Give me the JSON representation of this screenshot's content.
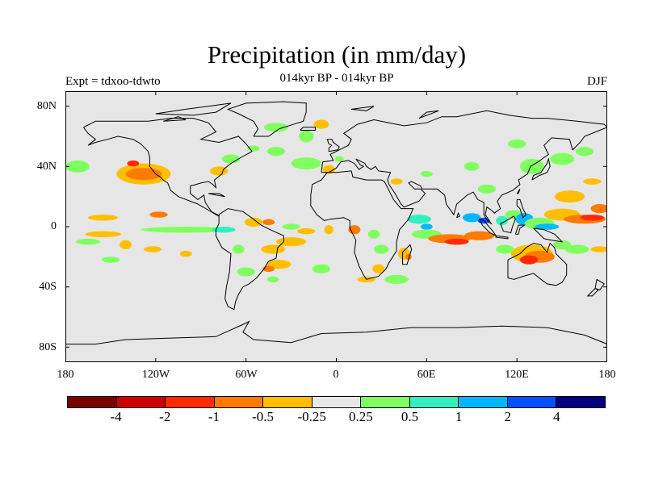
{
  "title": "Precipitation (in mm/day)",
  "subtitle": "014kyr BP - 014kyr BP",
  "left_label": "Expt = tdxoo-tdwto",
  "season": "DJF",
  "lat_ticks": [
    "80N",
    "40N",
    "0",
    "40S",
    "80S"
  ],
  "lon_ticks": [
    "180",
    "120W",
    "60W",
    "0",
    "60E",
    "120E",
    "180"
  ],
  "colorbar": {
    "colors": [
      "#7a0000",
      "#cc0000",
      "#ff2a00",
      "#ff7a00",
      "#ffbf00",
      "#e8e8e8",
      "#80ff60",
      "#30f0c0",
      "#00b8ff",
      "#0050ff",
      "#000080"
    ],
    "labels": [
      "-4",
      "-2",
      "-1",
      "-0.5",
      "-0.25",
      "0.25",
      "0.5",
      "1",
      "2",
      "4"
    ]
  },
  "map": {
    "background_color": "#e6e6e6",
    "coast_color": "#000000"
  }
}
